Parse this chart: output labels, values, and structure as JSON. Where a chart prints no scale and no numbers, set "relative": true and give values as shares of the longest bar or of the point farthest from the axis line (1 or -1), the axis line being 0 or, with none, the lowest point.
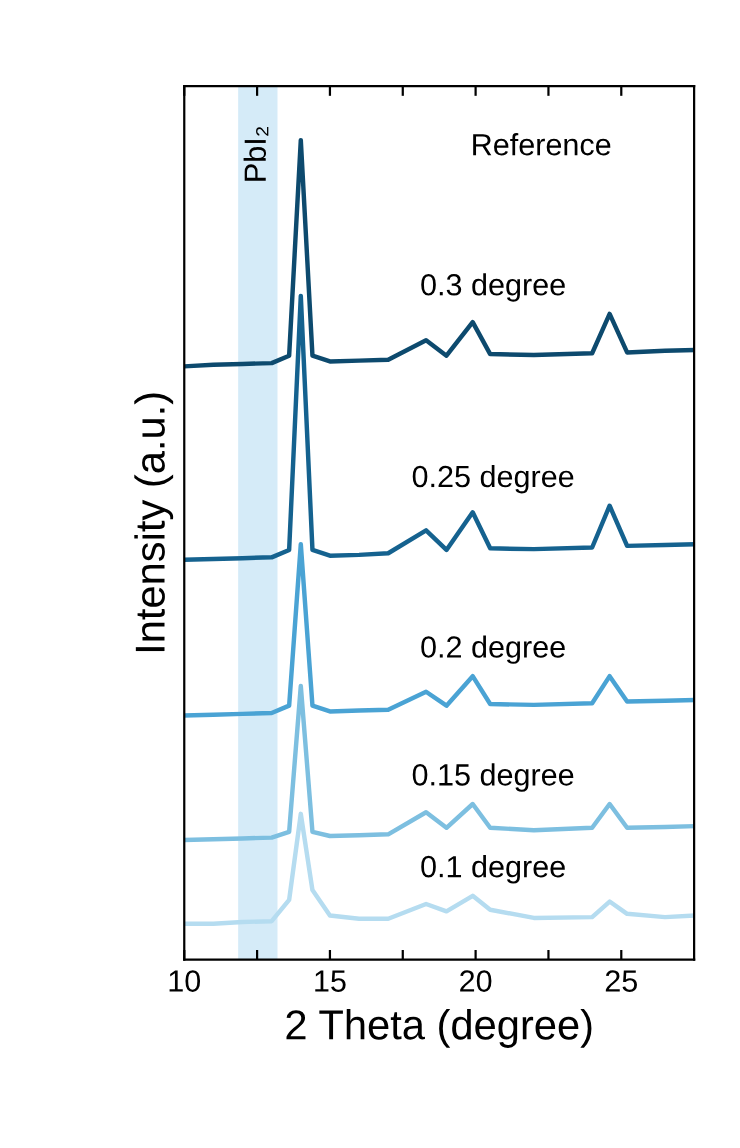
{
  "chart_data": {
    "type": "line",
    "relative": true,
    "xlabel": "2 Theta (degree)",
    "ylabel": "Intensity (a.u.)",
    "x": [
      10,
      11,
      12,
      13,
      13.6,
      14.0,
      14.4,
      15,
      16,
      17,
      18.3,
      19.0,
      19.9,
      20.5,
      22,
      24,
      24.6,
      25.2,
      26.5,
      27.5
    ],
    "xlim": [
      10,
      27.5
    ],
    "xticks": [
      10,
      {
        "value": 12.5,
        "label": null
      },
      15,
      {
        "value": 17.5,
        "label": null
      },
      20,
      {
        "value": 22.5,
        "label": null
      },
      25
    ],
    "tick_labels": "x",
    "grid": false,
    "legend": false,
    "marker": "none",
    "line_style": "solid",
    "annotations": [
      "Reference"
    ],
    "bands": [
      {
        "axis": "x",
        "from": 11.85,
        "to": 13.2,
        "label": "PbI₂",
        "color": "#d5ebf8"
      }
    ],
    "series": [
      {
        "name": "0.3 degree",
        "color": "#0d4a6e",
        "values": [
          0.724,
          0.726,
          0.727,
          0.728,
          0.737,
          1.0,
          0.737,
          0.73,
          0.731,
          0.732,
          0.756,
          0.737,
          0.778,
          0.739,
          0.738,
          0.74,
          0.788,
          0.741,
          0.743,
          0.744
        ]
      },
      {
        "name": "0.25 degree",
        "color": "#15628f",
        "values": [
          0.488,
          0.489,
          0.49,
          0.491,
          0.5,
          0.81,
          0.5,
          0.493,
          0.494,
          0.496,
          0.524,
          0.5,
          0.546,
          0.502,
          0.501,
          0.503,
          0.554,
          0.505,
          0.506,
          0.507
        ]
      },
      {
        "name": "0.2 degree",
        "color": "#4aa3d4",
        "values": [
          0.298,
          0.299,
          0.3,
          0.301,
          0.31,
          0.507,
          0.31,
          0.303,
          0.304,
          0.305,
          0.327,
          0.31,
          0.346,
          0.312,
          0.311,
          0.313,
          0.346,
          0.315,
          0.316,
          0.317
        ]
      },
      {
        "name": "0.15 degree",
        "color": "#7dbfe0",
        "values": [
          0.146,
          0.147,
          0.148,
          0.149,
          0.156,
          0.334,
          0.156,
          0.151,
          0.152,
          0.153,
          0.18,
          0.161,
          0.19,
          0.161,
          0.158,
          0.161,
          0.19,
          0.161,
          0.162,
          0.163
        ]
      },
      {
        "name": "0.1 degree",
        "color": "#b5dcf0",
        "values": [
          0.044,
          0.044,
          0.046,
          0.047,
          0.073,
          0.178,
          0.085,
          0.054,
          0.05,
          0.05,
          0.068,
          0.059,
          0.078,
          0.061,
          0.051,
          0.052,
          0.071,
          0.056,
          0.052,
          0.054
        ]
      }
    ]
  }
}
